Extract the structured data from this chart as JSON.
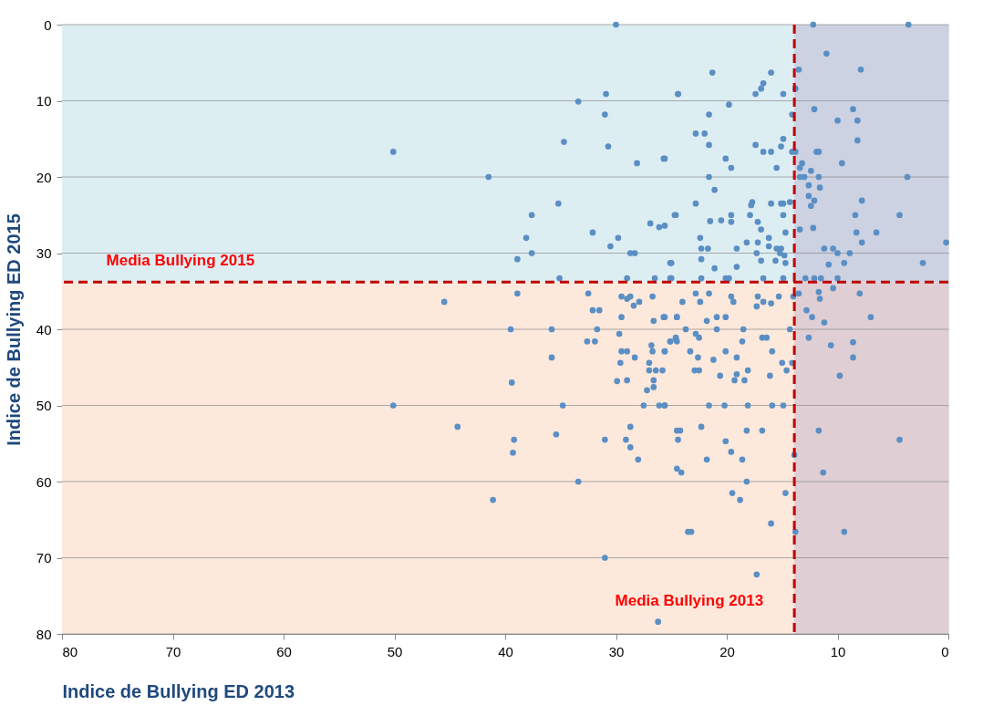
{
  "chart_data": {
    "type": "scatter",
    "xlabel": "Indice de Bullying ED 2013",
    "ylabel": "Indice de Bullying ED 2015",
    "xlim": [
      80,
      0
    ],
    "ylim": [
      80,
      0
    ],
    "xticks": [
      80,
      70,
      60,
      50,
      40,
      30,
      20,
      10,
      0
    ],
    "yticks": [
      80,
      70,
      60,
      50,
      40,
      30,
      20,
      10,
      0
    ],
    "grid": "y",
    "marker": "circle",
    "bands": [
      {
        "axis": "y",
        "from": 0,
        "to": 33.8,
        "color": "#ddeef3"
      },
      {
        "axis": "y",
        "from": 33.8,
        "to": 80,
        "color": "#fce9dc"
      },
      {
        "axis": "x",
        "from": 13.9,
        "to": 0,
        "color": "#b4a8c8"
      }
    ],
    "ref_lines": [
      {
        "axis": "y",
        "value": 33.8,
        "label": "Media Bullying 2015",
        "color": "#c00000",
        "line_style": "dashed"
      },
      {
        "axis": "x",
        "value": 13.9,
        "label": "Media Bullying 2013",
        "color": "#c00000",
        "line_style": "dashed"
      }
    ],
    "series": [
      {
        "color": "#5b8fc4",
        "x": [
          30.0,
          50.1,
          41.5,
          33.4,
          30.9,
          31.0,
          34.7,
          30.7,
          28.1,
          25.7,
          24.4,
          35.2,
          37.6,
          38.1,
          37.6,
          38.9,
          32.1,
          30.5,
          29.8,
          28.7,
          28.3,
          26.9,
          26.1,
          25.6,
          24.6,
          25.1,
          35.1,
          29.0,
          26.5,
          25.1,
          21.3,
          24.4,
          16.0,
          16.7,
          16.9,
          17.4,
          14.9,
          19.8,
          21.6,
          22.8,
          22.0,
          21.6,
          17.4,
          16.7,
          16.0,
          14.9,
          15.1,
          14.1,
          25.6,
          20.1,
          19.6,
          15.5,
          21.6,
          21.1,
          22.8,
          17.7,
          17.8,
          16.0,
          15.1,
          14.9,
          14.3,
          24.7,
          19.6,
          19.6,
          21.5,
          20.5,
          17.9,
          14.9,
          17.2,
          16.9,
          14.7,
          22.4,
          22.3,
          21.7,
          19.1,
          18.2,
          17.2,
          16.2,
          16.2,
          15.5,
          15.1,
          15.2,
          14.8,
          17.3,
          22.3,
          25.0,
          21.1,
          19.1,
          16.9,
          15.6,
          14.7,
          25.0,
          22.3,
          20.1,
          19.8,
          16.7,
          14.9,
          14.1,
          13.8,
          12.2,
          3.6,
          11.0,
          13.5,
          7.9,
          12.1,
          8.6,
          10.0,
          8.2,
          8.2,
          13.8,
          11.9,
          11.7,
          9.6,
          13.2,
          13.4,
          12.4,
          13.4,
          13.0,
          11.7,
          3.7,
          12.6,
          11.6,
          12.6,
          12.1,
          12.4,
          7.8,
          8.4,
          4.4,
          13.4,
          12.2,
          8.3,
          6.5,
          7.8,
          0.2,
          11.2,
          10.4,
          10.0,
          8.9,
          10.8,
          9.4,
          2.3,
          12.9,
          12.1,
          11.5,
          10.0,
          13.5,
          11.7,
          11.6,
          10.4,
          8.0,
          12.8,
          12.3,
          11.2,
          7.0,
          12.6,
          10.6,
          8.6,
          8.6,
          9.8,
          11.7,
          4.4,
          11.3,
          9.4,
          13.8,
          13.9,
          22.8,
          21.6,
          24.0,
          22.4,
          19.6,
          19.4,
          17.2,
          17.3,
          16.7,
          16.0,
          15.3,
          14.0,
          25.6,
          24.5,
          21.8,
          20.9,
          20.1,
          23.7,
          20.9,
          18.5,
          14.3,
          22.8,
          22.5,
          25.1,
          24.6,
          24.5,
          18.6,
          16.8,
          16.4,
          25.6,
          23.3,
          20.1,
          15.9,
          22.6,
          21.2,
          19.1,
          15.0,
          14.1,
          22.9,
          22.5,
          20.6,
          19.1,
          19.3,
          18.4,
          18.1,
          16.1,
          14.6,
          25.6,
          21.6,
          20.2,
          18.1,
          15.9,
          14.9,
          24.5,
          24.2,
          22.3,
          18.2,
          16.8,
          24.4,
          20.1,
          19.6,
          21.8,
          18.6,
          24.5,
          24.1,
          18.2,
          19.5,
          18.8,
          14.7,
          16.0,
          23.5,
          23.2,
          17.3,
          45.5,
          38.9,
          32.5,
          32.1,
          31.5,
          29.5,
          29.0,
          28.7,
          28.4,
          27.9,
          26.7,
          29.5,
          26.6,
          25.7,
          24.5,
          39.5,
          35.8,
          31.7,
          29.7,
          32.6,
          31.9,
          29.5,
          29.0,
          26.8,
          26.7,
          25.6,
          25.1,
          24.6,
          35.8,
          28.3,
          29.6,
          27.0,
          27.0,
          26.4,
          25.8,
          39.4,
          29.9,
          29.0,
          26.6,
          26.6,
          27.2,
          50.1,
          34.8,
          27.5,
          26.1,
          25.6,
          44.3,
          35.4,
          39.2,
          39.3,
          31.0,
          29.1,
          28.7,
          28.7,
          28.0,
          33.4,
          41.1,
          31.0,
          26.2
        ],
        "values": [
          0,
          16.7,
          20,
          10.1,
          9.1,
          11.8,
          15.4,
          16.0,
          18.2,
          17.6,
          9.1,
          23.5,
          25,
          28,
          30,
          30.8,
          27.3,
          29.1,
          28,
          30,
          30,
          26.1,
          26.6,
          26.4,
          25,
          31.3,
          33.3,
          33.3,
          33.3,
          33.3,
          6.3,
          9.1,
          6.3,
          7.7,
          8.4,
          9.1,
          9.1,
          10.5,
          11.8,
          14.3,
          14.3,
          15.8,
          15.8,
          16.7,
          16.7,
          15.0,
          16.0,
          16.7,
          17.6,
          17.6,
          18.8,
          18.8,
          20,
          21.7,
          23.5,
          23.3,
          23.7,
          23.5,
          23.5,
          23.5,
          23.3,
          25,
          25,
          25.9,
          25.8,
          25.7,
          25,
          25,
          25.9,
          26.9,
          27.3,
          28,
          29.4,
          29.4,
          29.4,
          28.6,
          28.6,
          28,
          29.1,
          29.4,
          29.4,
          30,
          30.3,
          30,
          30.8,
          31.3,
          32,
          31.8,
          31,
          31,
          31.3,
          33.3,
          33.3,
          33.3,
          33.3,
          33.3,
          33.3,
          11.8,
          8.4,
          0,
          0,
          3.8,
          5.9,
          5.9,
          11.1,
          11.1,
          12.6,
          12.6,
          15.2,
          16.7,
          16.7,
          16.7,
          18.2,
          18.2,
          18.8,
          19.2,
          20,
          20,
          20,
          20,
          21.1,
          21.4,
          22.5,
          23.1,
          23.8,
          23.1,
          25,
          25,
          26.9,
          26.7,
          27.3,
          27.3,
          28.6,
          28.6,
          29.4,
          29.4,
          30,
          30,
          31.5,
          31.3,
          31.3,
          33.3,
          33.3,
          33.3,
          33.3,
          35.3,
          35.1,
          36.0,
          34.6,
          35.3,
          37.5,
          38.4,
          39.1,
          38.4,
          41.1,
          42.1,
          41.7,
          43.7,
          46.1,
          53.3,
          54.5,
          58.8,
          66.6,
          66.6,
          56.5,
          35.3,
          35.3,
          36.4,
          36.4,
          35.7,
          36.4,
          35.7,
          37,
          36.4,
          36.6,
          35.7,
          35.7,
          38.4,
          38.4,
          38.9,
          38.4,
          38.4,
          40,
          40,
          40,
          40,
          40.6,
          41.1,
          41.6,
          41.1,
          41.6,
          41.6,
          41.1,
          41.1,
          42.9,
          42.9,
          42.9,
          42.9,
          43.7,
          44,
          43.7,
          44.4,
          44.4,
          45.4,
          45.4,
          46.1,
          45.9,
          46.7,
          46.7,
          45.4,
          46.1,
          45.4,
          50,
          50,
          50,
          50,
          50,
          50,
          53.3,
          53.3,
          52.8,
          53.3,
          53.3,
          54.5,
          54.7,
          56.1,
          57.1,
          57.1,
          58.3,
          58.8,
          60,
          61.5,
          62.4,
          61.5,
          65.5,
          66.6,
          66.6,
          72.2,
          36.4,
          35.3,
          35.3,
          37.5,
          37.5,
          35.7,
          36.0,
          35.7,
          36.9,
          36.4,
          35.7,
          38.4,
          38.9,
          38.4,
          38.4,
          40,
          40,
          40,
          40.6,
          41.6,
          41.6,
          42.9,
          42.9,
          42.1,
          42.9,
          42.9,
          41.6,
          41.2,
          43.7,
          43.7,
          44.4,
          44.4,
          45.4,
          45.4,
          45.4,
          47,
          46.8,
          46.7,
          46.7,
          47.6,
          48,
          50,
          50,
          50,
          50,
          50,
          52.8,
          53.8,
          54.5,
          56.2,
          54.5,
          54.5,
          52.8,
          55.5,
          57.1,
          60,
          62.4,
          70,
          78.4
        ]
      }
    ]
  }
}
